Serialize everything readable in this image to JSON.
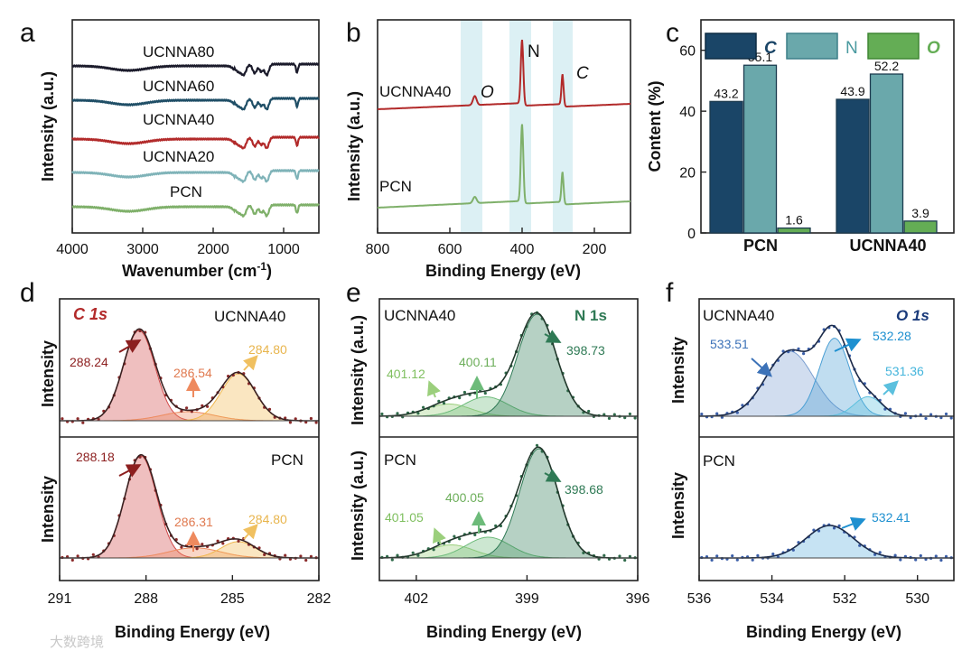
{
  "panel_letters": [
    "a",
    "b",
    "c",
    "d",
    "e",
    "f"
  ],
  "watermark": "大数跨境",
  "colors": {
    "ucnna80": "#1b1b2b",
    "ucnna60": "#1f4e66",
    "ucnna40": "#b22a2a",
    "ucnna20": "#7fb3b8",
    "pcn": "#7fb06a",
    "bar_c": "#1a4567",
    "bar_n": "#6aa8ab",
    "bar_o": "#64ad55"
  },
  "chart_data": [
    {
      "id": "a",
      "type": "line",
      "xlabel_base": "Wavenumber (cm",
      "xlabel_sup": "-1",
      "xlabel_end": ")",
      "ylabel": "Intensity (a.u.)",
      "xlim": [
        4000,
        500
      ],
      "xticks": [
        "4000",
        "3000",
        "2000",
        "1000"
      ],
      "xtick_values": [
        4000,
        3000,
        2000,
        1000
      ],
      "series": [
        {
          "name": "UCNNA80",
          "color": "#1b1b2b"
        },
        {
          "name": "UCNNA60",
          "color": "#1f4e66"
        },
        {
          "name": "UCNNA40",
          "color": "#b22a2a"
        },
        {
          "name": "UCNNA20",
          "color": "#7fb3b8"
        },
        {
          "name": "PCN",
          "color": "#7fb06a"
        }
      ]
    },
    {
      "id": "b",
      "type": "line",
      "xlabel": "Binding Energy (eV)",
      "ylabel": "Intensity (a.u.)",
      "xlim": [
        800,
        100
      ],
      "xticks": [
        "800",
        "600",
        "400",
        "200"
      ],
      "xtick_values": [
        800,
        600,
        400,
        200
      ],
      "element_labels": [
        "O",
        "N",
        "C"
      ],
      "series": [
        {
          "name": "UCNNA40",
          "color": "#b22a2a"
        },
        {
          "name": "PCN",
          "color": "#7fb06a"
        }
      ]
    },
    {
      "id": "c",
      "type": "bar",
      "ylabel": "Content (%)",
      "ylim": [
        0,
        70
      ],
      "yticks": [
        "0",
        "20",
        "40",
        "60"
      ],
      "ytick_values": [
        0,
        20,
        40,
        60
      ],
      "categories": [
        "PCN",
        "UCNNA40"
      ],
      "series": [
        {
          "name": "C",
          "values": [
            43.2,
            43.9
          ],
          "labels": [
            "43.2",
            "43.9"
          ],
          "color": "#1a4567"
        },
        {
          "name": "N",
          "values": [
            55.1,
            52.2
          ],
          "labels": [
            "55.1",
            "52.2"
          ],
          "color": "#6aa8ab"
        },
        {
          "name": "O",
          "values": [
            1.6,
            3.9
          ],
          "labels": [
            "1.6",
            "3.9"
          ],
          "color": "#64ad55"
        }
      ]
    },
    {
      "id": "d",
      "type": "area",
      "title": "C 1s",
      "xlabel": "Binding Energy (eV)",
      "ylabel": "Intensity",
      "xlim": [
        291,
        282
      ],
      "xticks": [
        "291",
        "288",
        "285",
        "282"
      ],
      "xtick_values": [
        291,
        288,
        285,
        282
      ],
      "samples": [
        {
          "name": "UCNNA40",
          "peaks": [
            {
              "label": "288.24",
              "position": 288.24,
              "height": 1.0,
              "color": "#d14848"
            },
            {
              "label": "286.54",
              "position": 286.54,
              "height": 0.1,
              "color": "#ee8a5e"
            },
            {
              "label": "284.80",
              "position": 284.8,
              "height": 0.52,
              "color": "#f0b74d"
            }
          ]
        },
        {
          "name": "PCN",
          "peaks": [
            {
              "label": "288.18",
              "position": 288.18,
              "height": 1.0,
              "color": "#d14848"
            },
            {
              "label": "286.31",
              "position": 286.31,
              "height": 0.1,
              "color": "#ee8a5e"
            },
            {
              "label": "284.80",
              "position": 284.8,
              "height": 0.16,
              "color": "#f0b74d"
            }
          ]
        }
      ]
    },
    {
      "id": "e",
      "type": "area",
      "title": "N 1s",
      "xlabel": "Binding Energy (eV)",
      "ylabel": "Intensity (a.u.)",
      "xlim": [
        403,
        396
      ],
      "xticks": [
        "402",
        "399",
        "396"
      ],
      "xtick_values": [
        402,
        399,
        396
      ],
      "samples": [
        {
          "name": "UCNNA40",
          "peaks": [
            {
              "label": "401.12",
              "position": 401.12,
              "height": 0.12,
              "color": "#9bcf7c"
            },
            {
              "label": "400.11",
              "position": 400.11,
              "height": 0.19,
              "color": "#6dbb7a"
            },
            {
              "label": "398.73",
              "position": 398.73,
              "height": 1.0,
              "color": "#2f7a55"
            }
          ]
        },
        {
          "name": "PCN",
          "peaks": [
            {
              "label": "401.05",
              "position": 401.05,
              "height": 0.12,
              "color": "#9bcf7c"
            },
            {
              "label": "400.05",
              "position": 400.05,
              "height": 0.19,
              "color": "#6dbb7a"
            },
            {
              "label": "398.68",
              "position": 398.68,
              "height": 1.0,
              "color": "#2f7a55"
            }
          ]
        }
      ]
    },
    {
      "id": "f",
      "type": "area",
      "title": "O 1s",
      "xlabel": "Binding Energy (eV)",
      "ylabel": "Intensity",
      "xlim": [
        536,
        529
      ],
      "xticks": [
        "536",
        "534",
        "532",
        "530"
      ],
      "xtick_values": [
        536,
        534,
        532,
        530
      ],
      "samples": [
        {
          "name": "UCNNA40",
          "peaks": [
            {
              "label": "533.51",
              "position": 533.51,
              "height": 0.6,
              "color": "#7b9fd0"
            },
            {
              "label": "532.28",
              "position": 532.28,
              "height": 0.72,
              "color": "#4a9fd4"
            },
            {
              "label": "531.36",
              "position": 531.36,
              "height": 0.18,
              "color": "#5bc0de"
            }
          ]
        },
        {
          "name": "PCN",
          "peaks": [
            {
              "label": "532.41",
              "position": 532.41,
              "height": 0.3,
              "color": "#5bb0dd"
            }
          ]
        }
      ]
    }
  ]
}
